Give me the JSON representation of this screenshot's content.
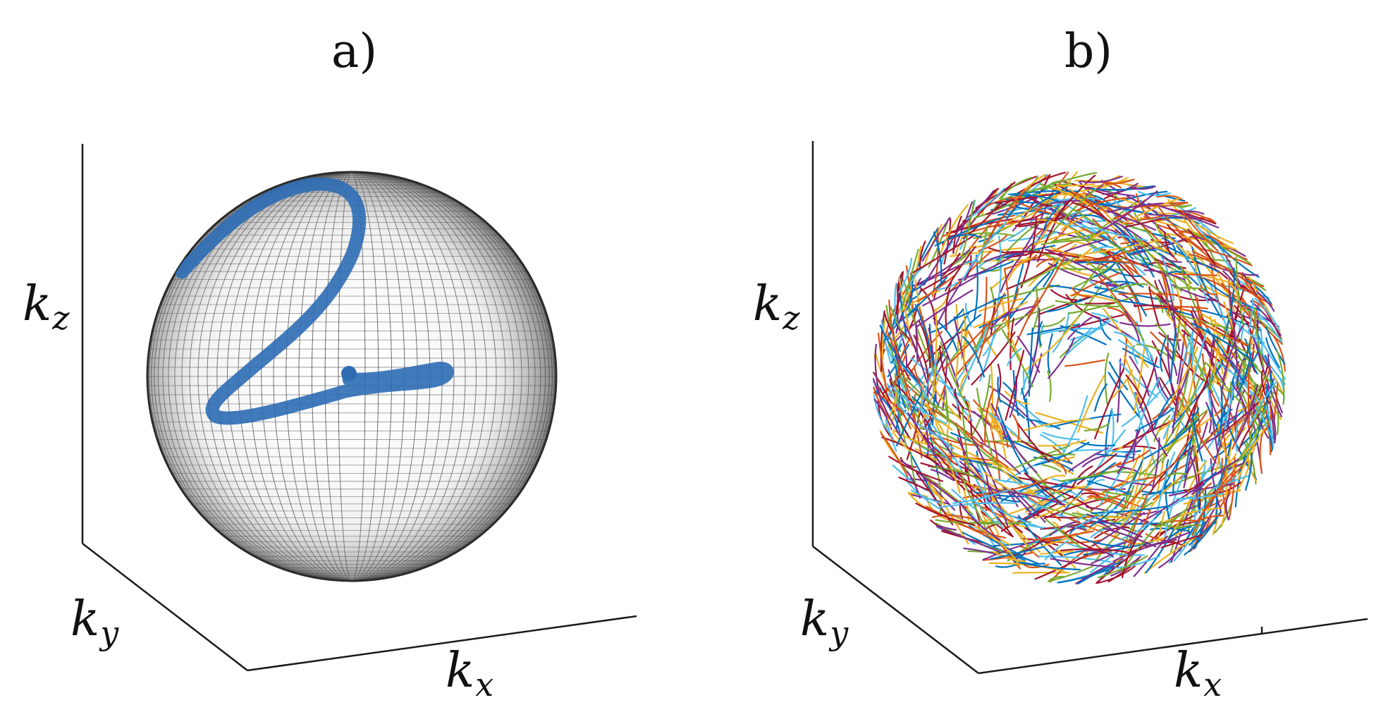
{
  "panels": [
    {
      "id": "a",
      "label": "a)",
      "axes": {
        "x_label": "k",
        "x_sub": "x",
        "y_label": "k",
        "y_sub": "y",
        "z_label": "k",
        "z_sub": "z"
      },
      "sphere_style": "wireframe mesh",
      "trajectory_color": "#2e6db4",
      "trajectory_count": 1
    },
    {
      "id": "b",
      "label": "b)",
      "axes": {
        "x_label": "k",
        "x_sub": "x",
        "y_label": "k",
        "y_sub": "y",
        "z_label": "k",
        "z_sub": "z"
      },
      "trajectory_palette": [
        "#0072bd",
        "#d95319",
        "#edb120",
        "#7e2f8e",
        "#77ac30",
        "#4dbeee",
        "#a2142f"
      ],
      "trajectory_count": 1400
    }
  ],
  "colors": {
    "axis": "#1a1a1a",
    "mesh": "#333333",
    "background": "#ffffff"
  }
}
